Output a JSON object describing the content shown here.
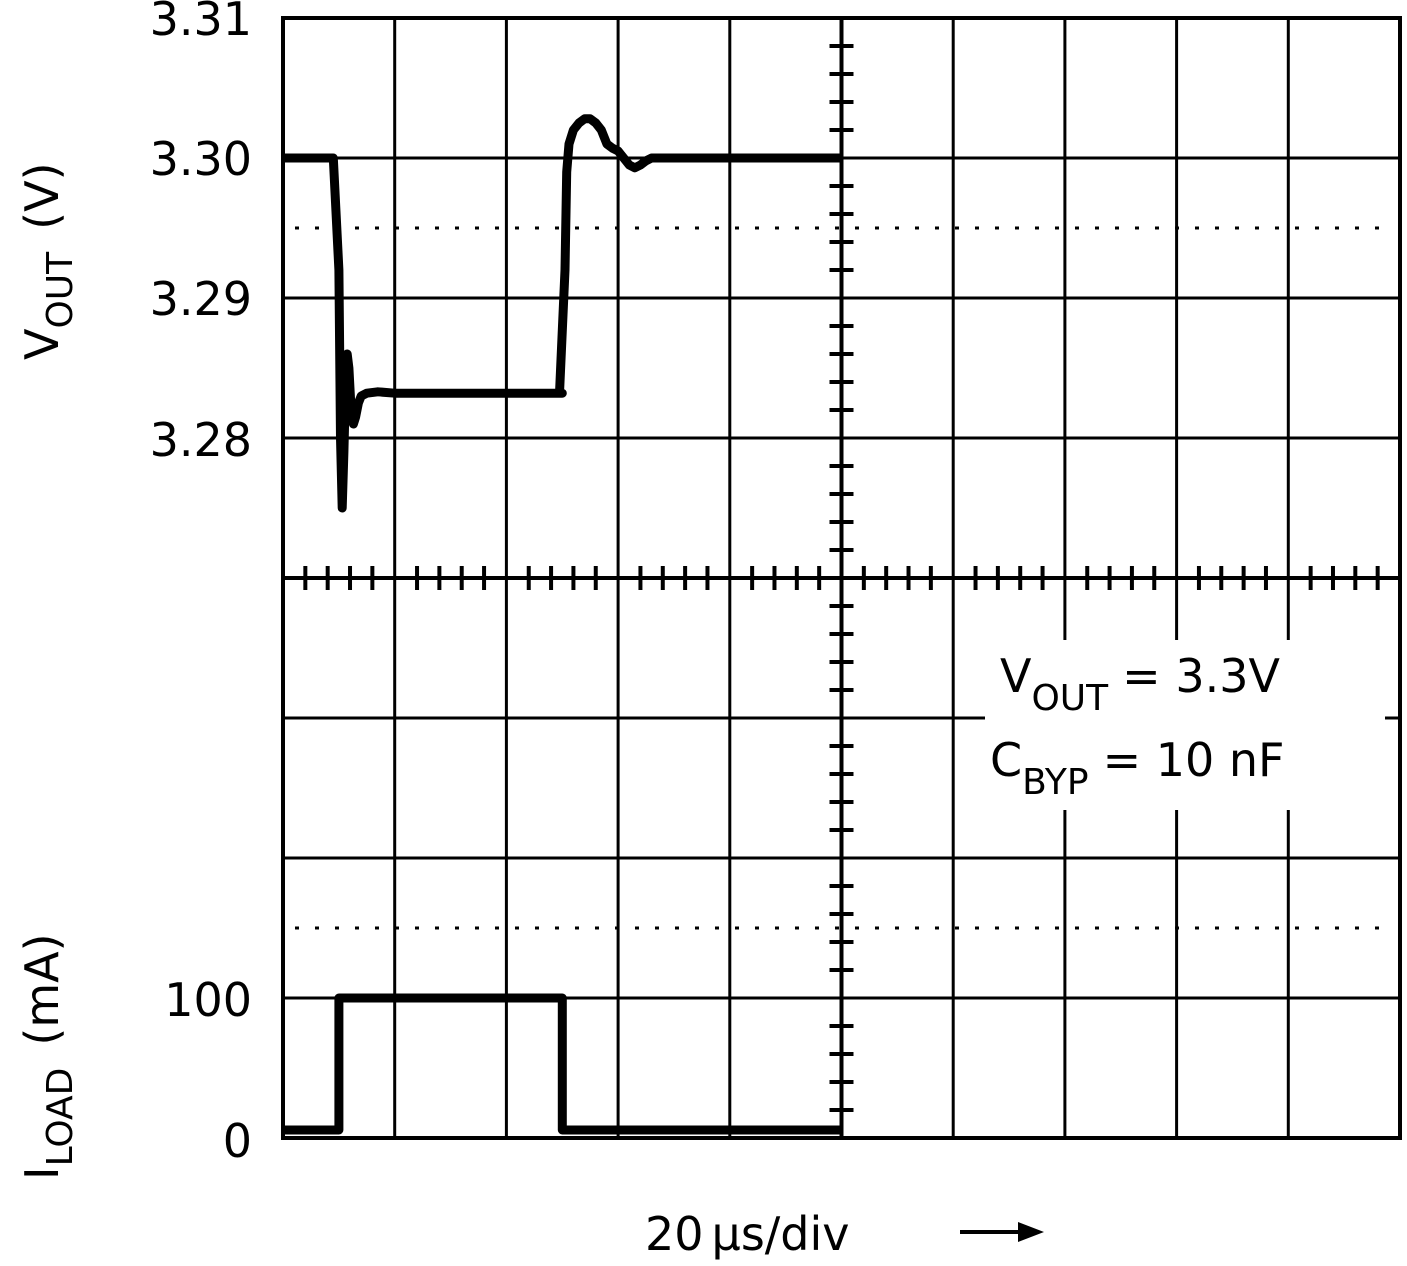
{
  "chart_data": {
    "type": "line",
    "time_scale": {
      "text": "20",
      "unit": "µs/div",
      "arrow": "→"
    },
    "time_per_div_us": 20,
    "divisions": {
      "x": 10,
      "y": 8
    },
    "vout_axis": {
      "label_main": "V",
      "label_sub": "OUT",
      "label_unit": "(V)",
      "ticks": [
        "3.31",
        "3.30",
        "3.29",
        "3.28"
      ],
      "tick_values": [
        3.31,
        3.3,
        3.29,
        3.28
      ],
      "ylim": [
        3.27,
        3.31
      ]
    },
    "iload_axis": {
      "label_main": "I",
      "label_sub": "LOAD",
      "label_unit": "(mA)",
      "ticks": [
        "100",
        "0"
      ],
      "tick_values": [
        100,
        0
      ],
      "ylim": [
        0,
        100
      ]
    },
    "series": [
      {
        "id": "vout",
        "x_us": [
          0,
          9,
          10,
          10.3,
          10.6,
          10.9,
          11.2,
          11.5,
          11.8,
          12.2,
          12.6,
          13,
          13.5,
          14,
          15,
          17,
          20,
          30,
          40,
          50,
          49.5,
          50.5,
          50.8,
          51.2,
          52,
          53,
          54,
          55,
          56,
          57,
          58,
          59,
          60,
          61,
          62,
          63,
          64,
          65,
          66,
          70,
          80,
          90,
          100
        ],
        "values": [
          3.3,
          3.3,
          3.292,
          3.28,
          3.275,
          3.279,
          3.284,
          3.286,
          3.285,
          3.282,
          3.281,
          3.2815,
          3.2825,
          3.283,
          3.2832,
          3.2833,
          3.2832,
          3.2832,
          3.2832,
          3.2832,
          3.2832,
          3.292,
          3.299,
          3.301,
          3.302,
          3.3025,
          3.3028,
          3.3028,
          3.3025,
          3.302,
          3.301,
          3.3007,
          3.3005,
          3.3,
          3.2995,
          3.2993,
          3.2995,
          3.2998,
          3.3,
          3.3,
          3.3,
          3.3,
          3.3
        ]
      },
      {
        "id": "iload",
        "x_us": [
          0,
          10,
          10,
          50,
          50,
          100
        ],
        "values": [
          0,
          0,
          100,
          100,
          0,
          0
        ]
      }
    ],
    "annotation": {
      "line1": {
        "main": "V",
        "sub": "OUT",
        "rest": "= 3.3V"
      },
      "line2": {
        "main": "C",
        "sub": "BYP",
        "rest": "= 10 nF"
      }
    },
    "grid": true
  }
}
